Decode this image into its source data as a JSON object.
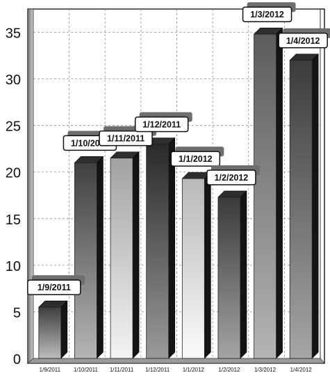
{
  "chart_data": {
    "type": "bar",
    "title": "",
    "xlabel": "",
    "ylabel": "",
    "ylim": [
      0,
      37.5
    ],
    "yticks": [
      0,
      5,
      10,
      15,
      20,
      25,
      30,
      35
    ],
    "grid": true,
    "legend": "none",
    "style": "3d-bars-grayscale",
    "categories": [
      "1/9/2011",
      "1/10/2011",
      "1/11/2011",
      "1/12/2011",
      "1/1/2012",
      "1/2/2012",
      "1/3/2012",
      "1/4/2012"
    ],
    "values": [
      5.5,
      21,
      21.5,
      23,
      19.3,
      17.3,
      34.8,
      32
    ],
    "data_labels": [
      "1/9/2011",
      "1/10/2011",
      "1/11/2011",
      "1/12/2011",
      "1/1/2012",
      "1/2/2012",
      "1/3/2012",
      "1/4/2012"
    ],
    "bar_colors": [
      [
        "#bdbdbd",
        "#3e3e3e"
      ],
      [
        "#b5b5b5",
        "#404040"
      ],
      [
        "#f4f4f4",
        "#a2a2a2"
      ],
      [
        "#9a9a9a",
        "#2a2a2a"
      ],
      [
        "#fafafa",
        "#b8b8b8"
      ],
      [
        "#a4a4a4",
        "#3a3a3a"
      ],
      [
        "#b4b4b4",
        "#5c5c5c"
      ],
      [
        "#a6a6a6",
        "#3c3c3c"
      ]
    ]
  }
}
